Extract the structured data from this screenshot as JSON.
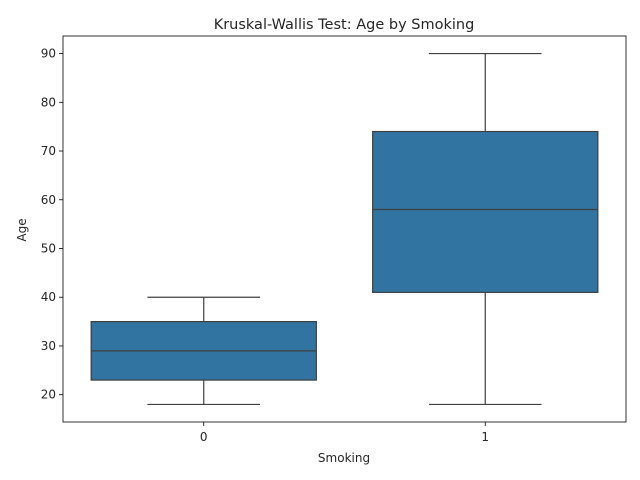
{
  "chart_data": {
    "type": "box",
    "title": "Kruskal-Wallis Test: Age by Smoking",
    "xlabel": "Smoking",
    "ylabel": "Age",
    "categories": [
      "0",
      "1"
    ],
    "boxes": [
      {
        "category": "0",
        "whisker_low": 18,
        "q1": 23,
        "median": 29,
        "q3": 35,
        "whisker_high": 40
      },
      {
        "category": "1",
        "whisker_low": 18,
        "q1": 41,
        "median": 58,
        "q3": 74,
        "whisker_high": 90
      }
    ],
    "ylim": [
      14.4,
      93.6
    ],
    "yticks": [
      20,
      30,
      40,
      50,
      60,
      70,
      80,
      90
    ],
    "grid": false,
    "box_color": "#3274a1",
    "line_color": "#3f3f3f"
  }
}
